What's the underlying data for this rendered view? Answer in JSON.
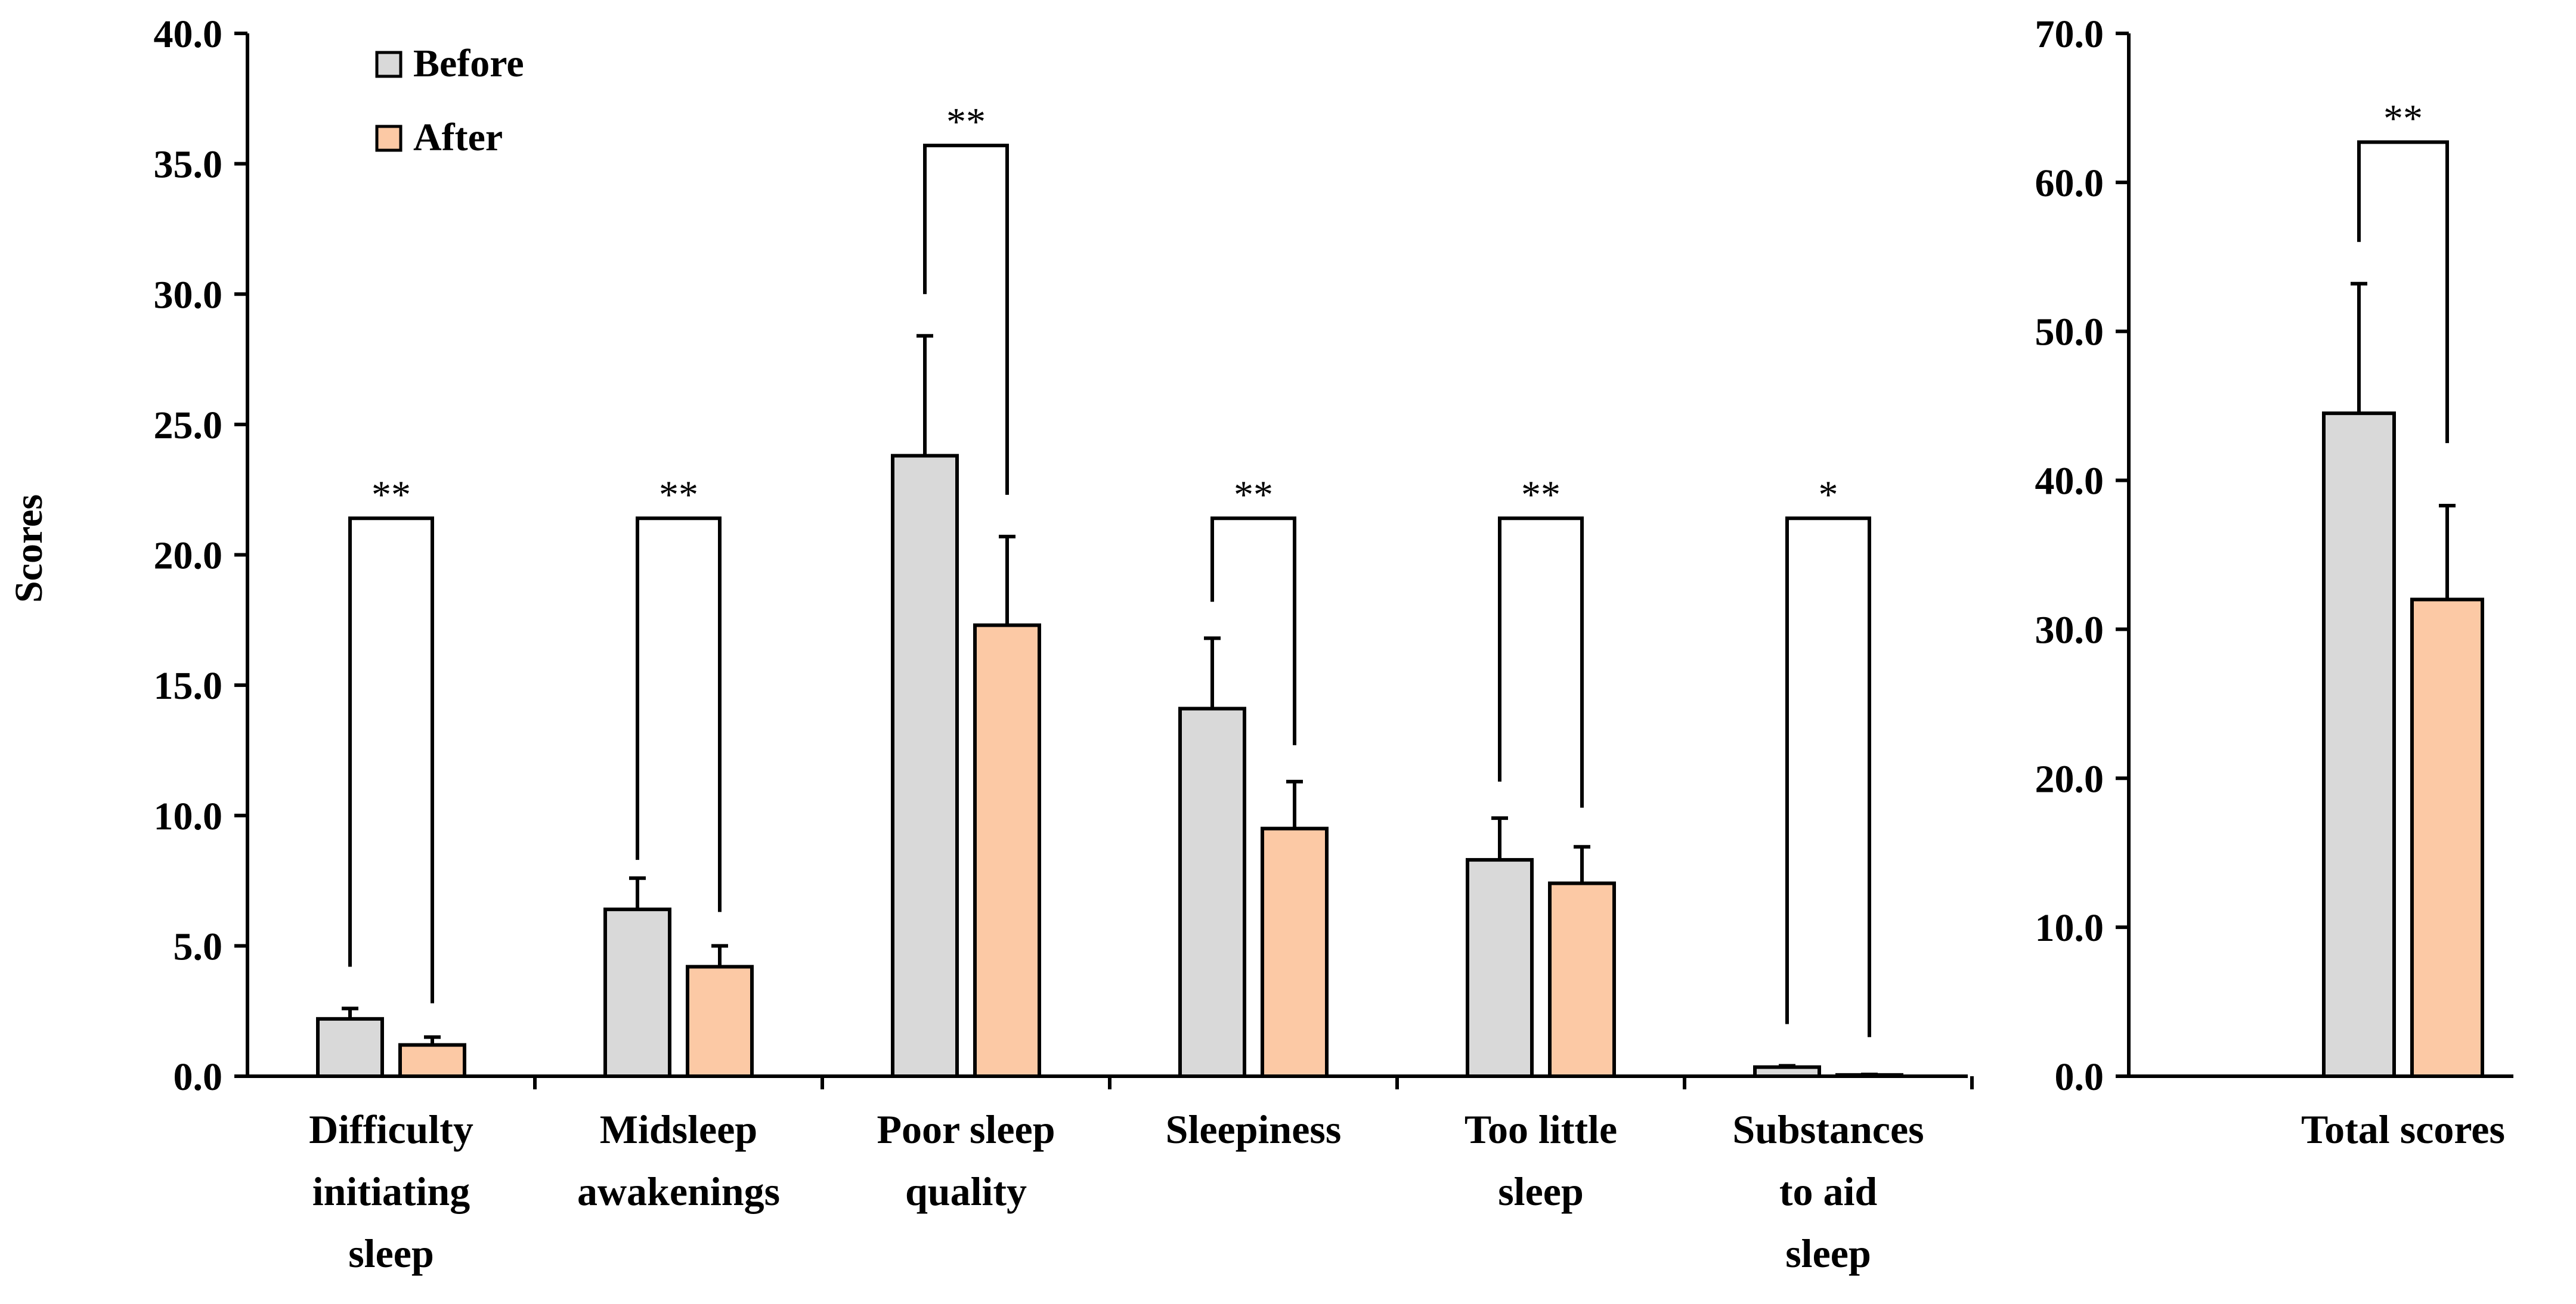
{
  "colors": {
    "before": "#d9d9d9",
    "after": "#fcc9a5",
    "stroke": "#000000",
    "background": "#ffffff"
  },
  "legend": {
    "before_label": "Before",
    "after_label": "After",
    "placement": "top-left"
  },
  "chart_data": [
    {
      "type": "bar",
      "ylabel": "Scores",
      "ylim": [
        0,
        40
      ],
      "yticks": [
        "0.0",
        "5.0",
        "10.0",
        "15.0",
        "20.0",
        "25.0",
        "30.0",
        "35.0",
        "40.0"
      ],
      "categories": [
        [
          "Difficulty",
          "initiating",
          "sleep"
        ],
        [
          "Midsleep",
          "awakenings"
        ],
        [
          "Poor sleep",
          "quality"
        ],
        [
          "Sleepiness"
        ],
        [
          "Too little",
          "sleep"
        ],
        [
          "Substances",
          "to aid",
          "sleep"
        ]
      ],
      "series": [
        {
          "name": "Before",
          "values": [
            2.2,
            6.4,
            23.8,
            14.1,
            8.3,
            0.35
          ],
          "errors": [
            0.4,
            1.2,
            4.6,
            2.7,
            1.6,
            0.05
          ]
        },
        {
          "name": "After",
          "values": [
            1.2,
            4.2,
            17.3,
            9.5,
            7.4,
            0.05
          ],
          "errors": [
            0.3,
            0.8,
            3.4,
            1.8,
            1.4,
            0.02
          ]
        }
      ],
      "significance": [
        "**",
        "**",
        "**",
        "**",
        "**",
        "*"
      ],
      "bracket_values": [
        21.4,
        21.4,
        35.7,
        21.4,
        21.4,
        21.4
      ],
      "bracket_left_end": [
        4.2,
        8.3,
        30.0,
        18.2,
        11.3,
        2.0
      ],
      "bracket_right_end": [
        2.8,
        6.3,
        22.3,
        12.7,
        10.3,
        1.5
      ]
    },
    {
      "type": "bar",
      "ylabel": "",
      "ylim": [
        0,
        70
      ],
      "yticks": [
        "0.0",
        "10.0",
        "20.0",
        "30.0",
        "40.0",
        "50.0",
        "60.0",
        "70.0"
      ],
      "categories": [
        [
          "Total scores"
        ]
      ],
      "series": [
        {
          "name": "Before",
          "values": [
            44.5
          ],
          "errors": [
            8.7
          ]
        },
        {
          "name": "After",
          "values": [
            32.0
          ],
          "errors": [
            6.3
          ]
        }
      ],
      "significance": [
        "**"
      ],
      "bracket_values": [
        62.7
      ],
      "bracket_left_end": [
        56.0
      ],
      "bracket_right_end": [
        42.5
      ]
    }
  ]
}
